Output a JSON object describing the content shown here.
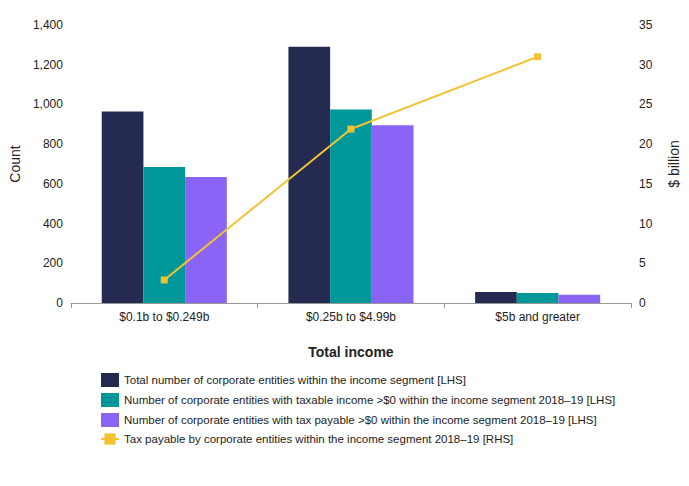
{
  "chart_data": {
    "type": "bar",
    "x_label": "Total income",
    "y_label": "Count",
    "y2_label": "$ billion",
    "categories": [
      "$0.1b to $0.249b",
      "$0.25b to $4.99b",
      "$5b and greater"
    ],
    "series": [
      {
        "name": "Total number of corporate entities within the income segment [LHS]",
        "type": "bar",
        "color": "#252b50",
        "values": [
          965,
          1290,
          55
        ]
      },
      {
        "name": "Number of corporate entities with taxable income >$0 within the income segment 2018–19 [LHS]",
        "type": "bar",
        "color": "#00979a",
        "values": [
          685,
          975,
          50
        ]
      },
      {
        "name": "Number of corporate entities with tax payable >$0 within the income segment 2018–19 [LHS]",
        "type": "bar",
        "color": "#8a63f7",
        "values": [
          635,
          895,
          42
        ]
      },
      {
        "name": "Tax payable by corporate entities within the income segment 2018–19 [RHS]",
        "type": "line",
        "axis": "y2",
        "color": "#f2c230",
        "marker": "square",
        "line_style": "solid",
        "values": [
          2.9,
          21.9,
          31
        ]
      }
    ],
    "ylim": [
      0,
      1400
    ],
    "yticks": [
      0,
      200,
      400,
      600,
      800,
      {
        "value": 1000,
        "label": "1,000"
      },
      {
        "value": 1200,
        "label": "1,200"
      },
      {
        "value": 1400,
        "label": "1,400"
      }
    ],
    "y2lim": [
      0,
      35
    ],
    "y2ticks": [
      0,
      5,
      10,
      15,
      20,
      25,
      30,
      35
    ],
    "grid": false,
    "legend": "bottom"
  }
}
